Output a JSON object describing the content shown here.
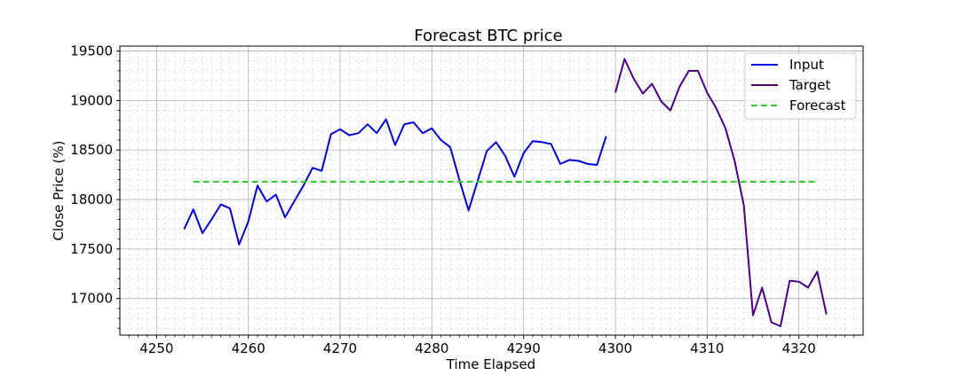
{
  "chart_data": {
    "type": "line",
    "title": "Forecast BTC price",
    "xlabel": "Time Elapsed",
    "ylabel": "Close Price (%)",
    "xlim": [
      4246,
      4327
    ],
    "ylim": [
      16630,
      19550
    ],
    "xticks": [
      4250,
      4260,
      4270,
      4280,
      4290,
      4300,
      4310,
      4320
    ],
    "yticks": [
      17000,
      17500,
      18000,
      18500,
      19000,
      19500
    ],
    "grid": true,
    "legend_position": "top-right",
    "series": [
      {
        "name": "Input",
        "color": "#0000dd",
        "style": "solid",
        "x": [
          4253,
          4254,
          4255,
          4256,
          4257,
          4258,
          4259,
          4260,
          4261,
          4262,
          4263,
          4264,
          4265,
          4266,
          4267,
          4268,
          4269,
          4270,
          4271,
          4272,
          4273,
          4274,
          4275,
          4276,
          4277,
          4278,
          4279,
          4280,
          4281,
          4282,
          4283,
          4284,
          4285,
          4286,
          4287,
          4288,
          4289,
          4290,
          4291,
          4292,
          4293,
          4294,
          4295,
          4296,
          4297,
          4298,
          4299
        ],
        "y": [
          17700,
          17900,
          17660,
          17800,
          17950,
          17910,
          17545,
          17780,
          18140,
          17980,
          18050,
          17820,
          17980,
          18140,
          18320,
          18290,
          18660,
          18710,
          18650,
          18670,
          18760,
          18670,
          18810,
          18550,
          18760,
          18780,
          18670,
          18720,
          18600,
          18530,
          18200,
          17890,
          18190,
          18490,
          18580,
          18440,
          18230,
          18470,
          18590,
          18580,
          18560,
          18360,
          18400,
          18390,
          18360,
          18350,
          18640
        ]
      },
      {
        "name": "Target",
        "color": "#4b0082",
        "style": "solid",
        "x": [
          4300,
          4301,
          4302,
          4303,
          4304,
          4305,
          4306,
          4307,
          4308,
          4309,
          4310,
          4311,
          4312,
          4313,
          4314,
          4315,
          4316,
          4317,
          4318,
          4319,
          4320,
          4321,
          4322,
          4323
        ],
        "y": [
          19080,
          19420,
          19220,
          19070,
          19170,
          18990,
          18900,
          19140,
          19300,
          19300,
          19080,
          18920,
          18720,
          18390,
          17940,
          16830,
          17110,
          16760,
          16720,
          17180,
          17170,
          17110,
          17270,
          16840
        ]
      },
      {
        "name": "Forecast",
        "color": "#33cc33",
        "style": "dashed",
        "x": [
          4254,
          4322
        ],
        "y": [
          18180,
          18180
        ]
      }
    ]
  }
}
